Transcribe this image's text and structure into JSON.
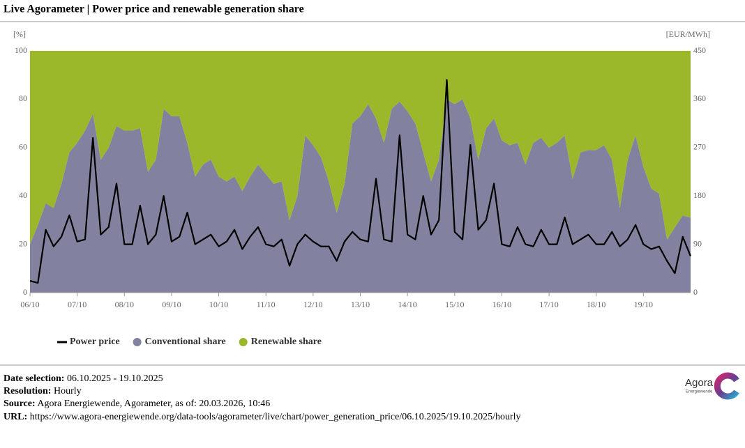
{
  "chart_data": {
    "type": "area",
    "title": "Live Agorameter | Power price and renewable generation share",
    "y_label": "[%]",
    "y2_label": "[EUR/MWh]",
    "x": [
      0,
      4,
      8,
      12,
      16,
      20,
      24,
      28,
      32,
      36,
      40,
      44,
      48,
      52,
      56,
      60,
      64,
      68,
      72,
      76,
      80,
      84,
      88,
      92,
      96,
      100,
      104,
      108,
      112,
      116,
      120,
      124,
      128,
      132,
      136,
      140,
      144,
      148,
      152,
      156,
      160,
      164,
      168,
      172,
      176,
      180,
      184,
      188,
      192,
      196,
      200,
      204,
      208,
      212,
      216,
      220,
      224,
      228,
      232,
      236,
      240,
      244,
      248,
      252,
      256,
      260,
      264,
      268,
      272,
      276,
      280,
      284,
      288,
      292,
      296,
      300,
      304,
      308,
      312,
      316,
      320,
      324,
      328,
      332,
      336
    ],
    "xlim": [
      0,
      336
    ],
    "xticks": [
      {
        "value": 0,
        "label": "06/10"
      },
      {
        "value": 24,
        "label": "07/10"
      },
      {
        "value": 48,
        "label": "08/10"
      },
      {
        "value": 72,
        "label": "09/10"
      },
      {
        "value": 96,
        "label": "10/10"
      },
      {
        "value": 120,
        "label": "11/10"
      },
      {
        "value": 144,
        "label": "12/10"
      },
      {
        "value": 168,
        "label": "13/10"
      },
      {
        "value": 192,
        "label": "14/10"
      },
      {
        "value": 216,
        "label": "15/10"
      },
      {
        "value": 240,
        "label": "16/10"
      },
      {
        "value": 264,
        "label": "17/10"
      },
      {
        "value": 288,
        "label": "18/10"
      },
      {
        "value": 312,
        "label": "19/10"
      }
    ],
    "ylim": [
      0,
      100
    ],
    "yticks": [
      0,
      20,
      40,
      60,
      80,
      100
    ],
    "y2lim": [
      0,
      450
    ],
    "y2ticks": [
      0,
      90,
      180,
      270,
      360,
      450
    ],
    "series": [
      {
        "name": "Power price",
        "type": "line",
        "axis": "y2",
        "color": "#000000",
        "values": [
          22,
          18,
          117,
          86,
          104,
          144,
          95,
          99,
          288,
          108,
          122,
          203,
          90,
          90,
          162,
          90,
          108,
          180,
          95,
          104,
          149,
          90,
          99,
          108,
          86,
          95,
          117,
          81,
          104,
          122,
          90,
          86,
          99,
          50,
          90,
          108,
          95,
          86,
          86,
          59,
          95,
          113,
          99,
          95,
          212,
          99,
          95,
          293,
          108,
          99,
          180,
          108,
          135,
          396,
          113,
          99,
          275,
          117,
          135,
          203,
          90,
          86,
          122,
          90,
          86,
          117,
          90,
          90,
          140,
          90,
          99,
          108,
          90,
          90,
          113,
          86,
          99,
          126,
          90,
          81,
          86,
          59,
          36,
          104,
          68
        ]
      },
      {
        "name": "Conventional share",
        "type": "area",
        "color": "#8282a0",
        "values": [
          20,
          28,
          37,
          35,
          45,
          58,
          62,
          67,
          74,
          55,
          60,
          69,
          67,
          67,
          68,
          50,
          55,
          76,
          73,
          73,
          62,
          48,
          53,
          55,
          48,
          46,
          48,
          42,
          48,
          53,
          49,
          45,
          46,
          30,
          40,
          65,
          61,
          56,
          46,
          33,
          45,
          70,
          73,
          78,
          72,
          62,
          76,
          79,
          75,
          70,
          58,
          46,
          55,
          80,
          78,
          80,
          72,
          55,
          68,
          72,
          63,
          61,
          62,
          53,
          62,
          64,
          60,
          62,
          65,
          47,
          58,
          59,
          59,
          61,
          55,
          35,
          55,
          65,
          52,
          43,
          41,
          22,
          27,
          32,
          31
        ]
      },
      {
        "name": "Renewable share",
        "type": "area",
        "color": "#9bb82a",
        "values": [
          80,
          72,
          63,
          65,
          55,
          42,
          38,
          33,
          26,
          45,
          40,
          31,
          33,
          33,
          32,
          50,
          45,
          24,
          27,
          27,
          38,
          52,
          47,
          45,
          52,
          54,
          52,
          58,
          52,
          47,
          51,
          55,
          54,
          70,
          60,
          35,
          39,
          44,
          54,
          67,
          55,
          30,
          27,
          22,
          28,
          38,
          24,
          21,
          25,
          30,
          42,
          54,
          45,
          20,
          22,
          20,
          28,
          45,
          32,
          28,
          37,
          39,
          38,
          47,
          38,
          36,
          40,
          38,
          35,
          53,
          42,
          41,
          41,
          39,
          45,
          65,
          45,
          35,
          48,
          57,
          59,
          78,
          73,
          68,
          69
        ]
      }
    ]
  },
  "footer": [
    {
      "label": "Date selection:",
      "value": "06.10.2025 - 19.10.2025"
    },
    {
      "label": "Resolution:",
      "value": "Hourly"
    },
    {
      "label": "Source:",
      "value": "Agora Energiewende, Agorameter, as of: 20.03.2026, 10:46"
    },
    {
      "label": "URL:",
      "value": "https://www.agora-energiewende.org/data-tools/agorameter/live/chart/power_generation_price/06.10.2025/19.10.2025/hourly"
    }
  ],
  "logo": {
    "name": "Agora",
    "tagline": "Energiewende"
  }
}
